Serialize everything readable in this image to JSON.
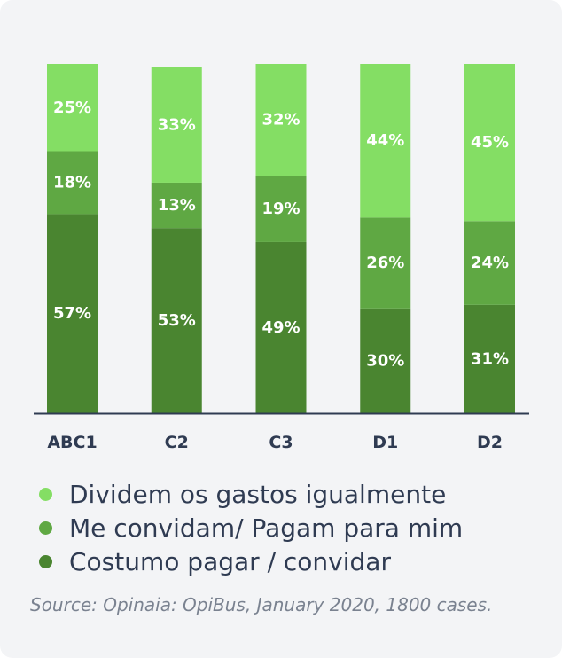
{
  "chart_data": {
    "type": "bar",
    "stacked": true,
    "percent": true,
    "categories": [
      "ABC1",
      "C2",
      "C3",
      "D1",
      "D2"
    ],
    "series": [
      {
        "name": "Costumo pagar / convidar",
        "color": "#4a8530",
        "values": [
          57,
          53,
          49,
          30,
          31
        ]
      },
      {
        "name": "Me convidam/ Pagam para mim",
        "color": "#5fa843",
        "values": [
          18,
          13,
          19,
          26,
          24
        ]
      },
      {
        "name": "Dividem os gastos igualmente",
        "color": "#84de64",
        "values": [
          25,
          33,
          32,
          44,
          45
        ]
      }
    ],
    "ylim": [
      0,
      100
    ],
    "grid": false,
    "legend_position": "bottom",
    "label_color": "#ffffff",
    "axis_color": "#2f3b52"
  },
  "legend": [
    {
      "label": "Dividem os gastos igualmente",
      "color": "#84de64"
    },
    {
      "label": "Me convidam/ Pagam para mim",
      "color": "#5fa843"
    },
    {
      "label": "Costumo pagar / convidar",
      "color": "#4a8530"
    }
  ],
  "source": "Source: Opinaia: OpiBus, January 2020, 1800 cases."
}
